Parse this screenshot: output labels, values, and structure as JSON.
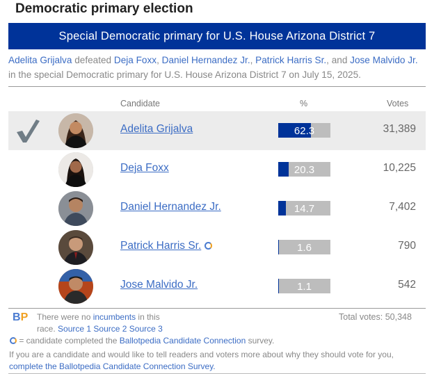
{
  "section_title": "Democratic primary election",
  "banner": "Special Democratic primary for U.S. House Arizona District 7",
  "summary": {
    "winner": "Adelita Grijalva",
    "defeated_word": " defeated ",
    "losers": [
      "Deja Foxx",
      "Daniel Hernandez Jr.",
      "Patrick Harris Sr."
    ],
    "sep1": ", ",
    "and_word": ", and ",
    "last_loser": "Jose Malvido Jr.",
    "tail": " in the special Democratic primary for U.S. House Arizona District 7 on July 15, 2025."
  },
  "table": {
    "headers": {
      "candidate": "Candidate",
      "pct": "%",
      "votes": "Votes"
    },
    "accent_color": "#003399",
    "rows": [
      {
        "name": "Adelita Grijalva",
        "pct": "62.3",
        "pct_value": 62.3,
        "votes": "31,389",
        "winner": true,
        "cc": false
      },
      {
        "name": "Deja Foxx",
        "pct": "20.3",
        "pct_value": 20.3,
        "votes": "10,225",
        "winner": false,
        "cc": false
      },
      {
        "name": "Daniel Hernandez Jr.",
        "pct": "14.7",
        "pct_value": 14.7,
        "votes": "7,402",
        "winner": false,
        "cc": false
      },
      {
        "name": "Patrick Harris Sr.",
        "pct": "1.6",
        "pct_value": 1.6,
        "votes": "790",
        "winner": false,
        "cc": true
      },
      {
        "name": "Jose Malvido Jr.",
        "pct": "1.1",
        "pct_value": 1.1,
        "votes": "542",
        "winner": false,
        "cc": false
      }
    ]
  },
  "footer": {
    "logo_b": "B",
    "logo_p": "P",
    "no_incumbents_pre": "There were no ",
    "incumbents_link": "incumbents",
    "no_incumbents_post": " in this",
    "race_word": "race. ",
    "source1": "Source 1",
    "source2": "Source 2",
    "source3": "Source 3",
    "total_votes": "Total votes: 50,348",
    "cc_pre": " = candidate completed the ",
    "cc_link": "Ballotpedia Candidate Connection",
    "cc_post": " survey.",
    "cta_pre": "If you are a candidate and would like to tell readers and voters more about why they should vote for you, ",
    "cta_link": "complete the Ballotpedia Candidate Connection Survey."
  }
}
